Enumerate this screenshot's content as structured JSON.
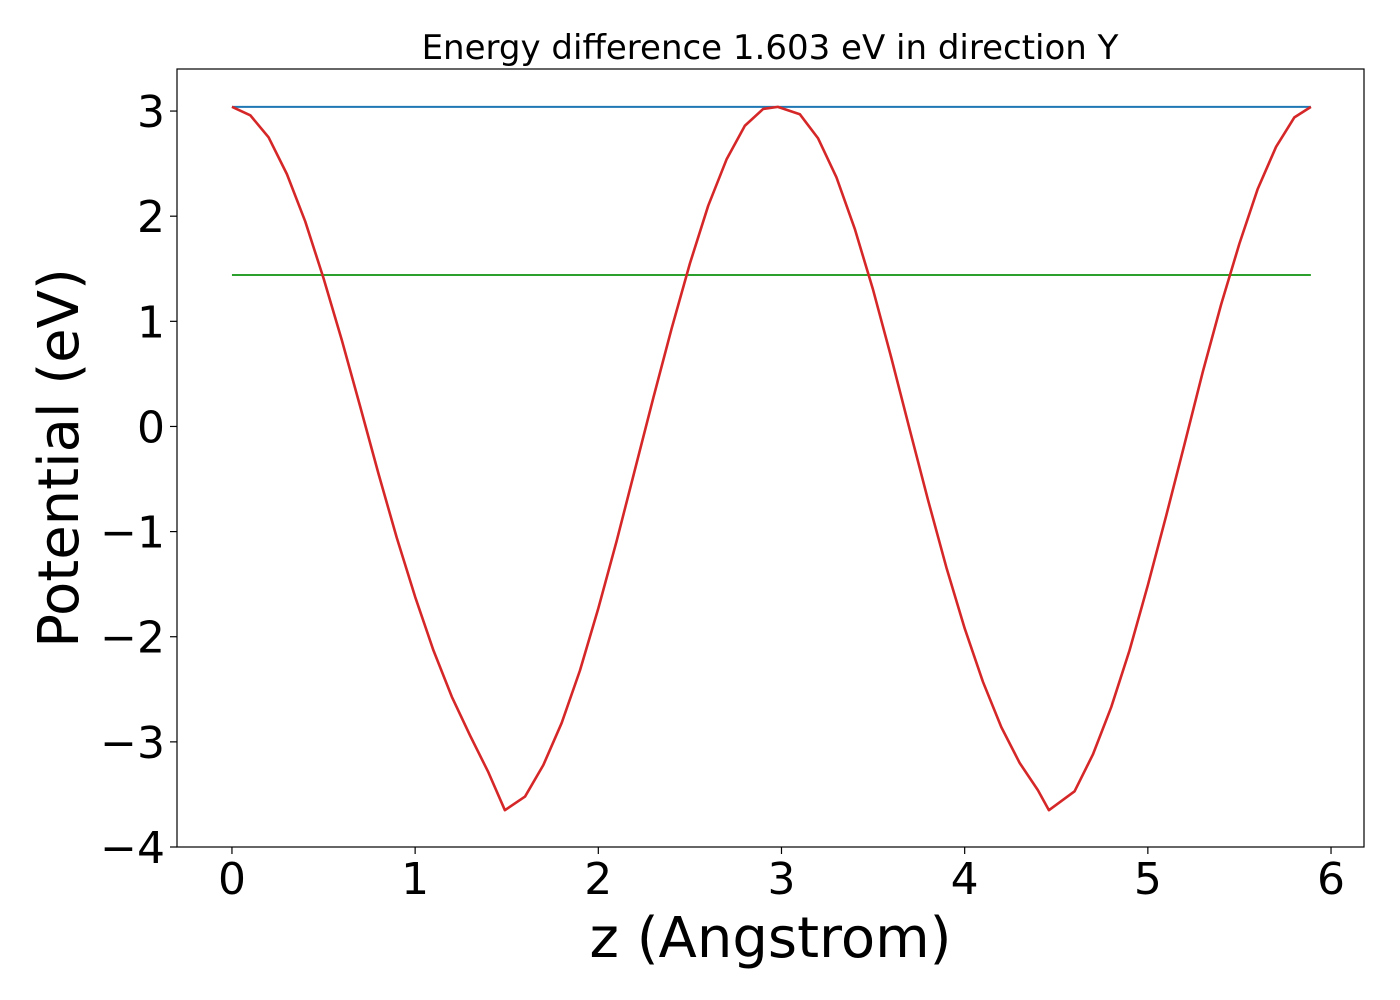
{
  "chart_data": {
    "type": "line",
    "title": "Energy difference 1.603 eV in direction Y",
    "xlabel": "z (Angstrom)",
    "ylabel": "Potential (eV)",
    "xlim": [
      -0.3,
      6.18
    ],
    "ylim": [
      -4.0,
      3.4
    ],
    "x_ticks": [
      0,
      1,
      2,
      3,
      4,
      5,
      6
    ],
    "y_ticks": [
      -4,
      -3,
      -2,
      -1,
      0,
      1,
      2,
      3
    ],
    "x_tick_labels": [
      "0",
      "1",
      "2",
      "3",
      "4",
      "5",
      "6"
    ],
    "y_tick_labels": [
      "−4",
      "−3",
      "−2",
      "−1",
      "0",
      "1",
      "2",
      "3"
    ],
    "grid": false,
    "series": [
      {
        "color": "#d62728",
        "x": [
          0.0,
          0.1,
          0.2,
          0.3,
          0.4,
          0.5,
          0.6,
          0.7,
          0.8,
          0.9,
          1.0,
          1.1,
          1.2,
          1.3,
          1.4,
          1.49,
          1.6,
          1.7,
          1.8,
          1.9,
          2.0,
          2.1,
          2.2,
          2.3,
          2.4,
          2.5,
          2.6,
          2.7,
          2.8,
          2.9,
          2.98,
          3.1,
          3.2,
          3.3,
          3.4,
          3.5,
          3.6,
          3.7,
          3.8,
          3.9,
          4.0,
          4.1,
          4.2,
          4.3,
          4.4,
          4.46,
          4.6,
          4.7,
          4.8,
          4.9,
          5.0,
          5.1,
          5.2,
          5.3,
          5.4,
          5.5,
          5.6,
          5.7,
          5.8,
          5.89
        ],
        "y": [
          3.04,
          2.96,
          2.75,
          2.4,
          1.95,
          1.41,
          0.82,
          0.19,
          -0.45,
          -1.06,
          -1.62,
          -2.13,
          -2.57,
          -2.94,
          -3.29,
          -3.65,
          -3.52,
          -3.22,
          -2.82,
          -2.32,
          -1.73,
          -1.09,
          -0.41,
          0.27,
          0.93,
          1.55,
          2.1,
          2.54,
          2.86,
          3.02,
          3.04,
          2.97,
          2.74,
          2.37,
          1.88,
          1.3,
          0.65,
          -0.03,
          -0.7,
          -1.34,
          -1.92,
          -2.43,
          -2.86,
          -3.2,
          -3.46,
          -3.65,
          -3.47,
          -3.12,
          -2.67,
          -2.13,
          -1.51,
          -0.85,
          -0.17,
          0.52,
          1.16,
          1.74,
          2.26,
          2.66,
          2.94,
          3.04
        ]
      },
      {
        "color": "#1f77b4",
        "x": [
          0.0,
          5.89
        ],
        "y": [
          3.04,
          3.04
        ]
      },
      {
        "color": "#2ca02c",
        "x": [
          0.0,
          5.89
        ],
        "y": [
          1.44,
          1.44
        ]
      }
    ]
  }
}
